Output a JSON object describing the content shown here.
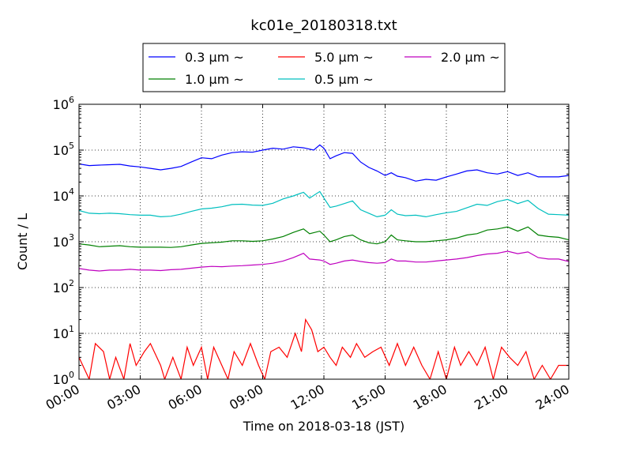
{
  "chart_data": {
    "type": "line",
    "title": "kc01e_20180318.txt",
    "xlabel": "Time on 2018-03-18 (JST)",
    "ylabel": "Count / L",
    "y_scale": "log",
    "xlim": [
      0,
      24
    ],
    "ylim": [
      1,
      1000000
    ],
    "grid": true,
    "legend_placement": "top-center",
    "x_tick_labels": [
      "00:00",
      "03:00",
      "06:00",
      "09:00",
      "12:00",
      "15:00",
      "18:00",
      "21:00",
      "24:00"
    ],
    "y_tick_labels": [
      {
        "base": "10",
        "exp": "0"
      },
      {
        "base": "10",
        "exp": "1"
      },
      {
        "base": "10",
        "exp": "2"
      },
      {
        "base": "10",
        "exp": "3"
      },
      {
        "base": "10",
        "exp": "4"
      },
      {
        "base": "10",
        "exp": "5"
      },
      {
        "base": "10",
        "exp": "6"
      }
    ],
    "legend_order": [
      0,
      2,
      4,
      1,
      3
    ],
    "series": [
      {
        "name": "0.3 μm ~",
        "color": "#0000ff",
        "points": [
          [
            0,
            50000
          ],
          [
            0.5,
            46000
          ],
          [
            1,
            47000
          ],
          [
            1.5,
            48000
          ],
          [
            2,
            49000
          ],
          [
            2.5,
            45000
          ],
          [
            3,
            43000
          ],
          [
            3.5,
            40000
          ],
          [
            4,
            37000
          ],
          [
            4.5,
            40000
          ],
          [
            5,
            44000
          ],
          [
            5.5,
            55000
          ],
          [
            6,
            68000
          ],
          [
            6.5,
            65000
          ],
          [
            7,
            78000
          ],
          [
            7.5,
            88000
          ],
          [
            8,
            92000
          ],
          [
            8.5,
            90000
          ],
          [
            9,
            100000
          ],
          [
            9.5,
            110000
          ],
          [
            10,
            105000
          ],
          [
            10.5,
            118000
          ],
          [
            11,
            112000
          ],
          [
            11.5,
            100000
          ],
          [
            11.8,
            130000
          ],
          [
            12,
            110000
          ],
          [
            12.3,
            65000
          ],
          [
            12.6,
            75000
          ],
          [
            13,
            88000
          ],
          [
            13.4,
            85000
          ],
          [
            13.8,
            55000
          ],
          [
            14.2,
            42000
          ],
          [
            14.6,
            35000
          ],
          [
            15,
            28000
          ],
          [
            15.3,
            32000
          ],
          [
            15.6,
            27000
          ],
          [
            16,
            25000
          ],
          [
            16.5,
            21000
          ],
          [
            17,
            23000
          ],
          [
            17.5,
            22000
          ],
          [
            18,
            26000
          ],
          [
            18.5,
            30000
          ],
          [
            19,
            35000
          ],
          [
            19.5,
            37000
          ],
          [
            20,
            32000
          ],
          [
            20.5,
            30000
          ],
          [
            21,
            34000
          ],
          [
            21.5,
            28000
          ],
          [
            22,
            32000
          ],
          [
            22.5,
            26000
          ],
          [
            23,
            26000
          ],
          [
            23.5,
            26000
          ],
          [
            24,
            28000
          ]
        ]
      },
      {
        "name": "0.5 μm ~",
        "color": "#00bfbf",
        "points": [
          [
            0,
            4800
          ],
          [
            0.5,
            4200
          ],
          [
            1,
            4100
          ],
          [
            1.5,
            4200
          ],
          [
            2,
            4100
          ],
          [
            2.5,
            3900
          ],
          [
            3,
            3800
          ],
          [
            3.5,
            3800
          ],
          [
            4,
            3500
          ],
          [
            4.5,
            3600
          ],
          [
            5,
            4000
          ],
          [
            5.5,
            4600
          ],
          [
            6,
            5200
          ],
          [
            6.5,
            5400
          ],
          [
            7,
            5800
          ],
          [
            7.5,
            6500
          ],
          [
            8,
            6600
          ],
          [
            8.5,
            6300
          ],
          [
            9,
            6200
          ],
          [
            9.5,
            6900
          ],
          [
            10,
            8600
          ],
          [
            10.5,
            10000
          ],
          [
            11,
            12000
          ],
          [
            11.3,
            9000
          ],
          [
            11.8,
            12500
          ],
          [
            12,
            9000
          ],
          [
            12.3,
            5600
          ],
          [
            12.6,
            6000
          ],
          [
            13,
            6800
          ],
          [
            13.4,
            7800
          ],
          [
            13.8,
            5000
          ],
          [
            14.2,
            4200
          ],
          [
            14.6,
            3500
          ],
          [
            15,
            3800
          ],
          [
            15.3,
            5000
          ],
          [
            15.6,
            4000
          ],
          [
            16,
            3700
          ],
          [
            16.5,
            3800
          ],
          [
            17,
            3500
          ],
          [
            17.5,
            3900
          ],
          [
            18,
            4300
          ],
          [
            18.5,
            4600
          ],
          [
            19,
            5500
          ],
          [
            19.5,
            6600
          ],
          [
            20,
            6200
          ],
          [
            20.5,
            7500
          ],
          [
            21,
            8400
          ],
          [
            21.5,
            6800
          ],
          [
            22,
            8000
          ],
          [
            22.5,
            5300
          ],
          [
            23,
            4000
          ],
          [
            23.5,
            3900
          ],
          [
            24,
            3800
          ]
        ]
      },
      {
        "name": "1.0 μm ~",
        "color": "#008000",
        "points": [
          [
            0,
            900
          ],
          [
            0.5,
            850
          ],
          [
            1,
            780
          ],
          [
            1.5,
            800
          ],
          [
            2,
            820
          ],
          [
            2.5,
            780
          ],
          [
            3,
            760
          ],
          [
            3.5,
            760
          ],
          [
            4,
            760
          ],
          [
            4.5,
            750
          ],
          [
            5,
            780
          ],
          [
            5.5,
            850
          ],
          [
            6,
            920
          ],
          [
            6.5,
            950
          ],
          [
            7,
            980
          ],
          [
            7.5,
            1050
          ],
          [
            8,
            1050
          ],
          [
            8.5,
            1020
          ],
          [
            9,
            1050
          ],
          [
            9.5,
            1150
          ],
          [
            10,
            1300
          ],
          [
            10.5,
            1600
          ],
          [
            11,
            1900
          ],
          [
            11.3,
            1500
          ],
          [
            11.8,
            1700
          ],
          [
            12,
            1400
          ],
          [
            12.3,
            1000
          ],
          [
            12.6,
            1100
          ],
          [
            13,
            1300
          ],
          [
            13.4,
            1400
          ],
          [
            13.8,
            1100
          ],
          [
            14.2,
            950
          ],
          [
            14.6,
            900
          ],
          [
            15,
            1000
          ],
          [
            15.3,
            1400
          ],
          [
            15.6,
            1100
          ],
          [
            16,
            1050
          ],
          [
            16.5,
            1000
          ],
          [
            17,
            1000
          ],
          [
            17.5,
            1050
          ],
          [
            18,
            1100
          ],
          [
            18.5,
            1200
          ],
          [
            19,
            1400
          ],
          [
            19.5,
            1500
          ],
          [
            20,
            1800
          ],
          [
            20.5,
            1900
          ],
          [
            21,
            2100
          ],
          [
            21.5,
            1700
          ],
          [
            22,
            2100
          ],
          [
            22.5,
            1400
          ],
          [
            23,
            1300
          ],
          [
            23.5,
            1250
          ],
          [
            24,
            1100
          ]
        ]
      },
      {
        "name": "2.0 μm ~",
        "color": "#bf00bf",
        "points": [
          [
            0,
            260
          ],
          [
            0.5,
            240
          ],
          [
            1,
            230
          ],
          [
            1.5,
            240
          ],
          [
            2,
            240
          ],
          [
            2.5,
            250
          ],
          [
            3,
            240
          ],
          [
            3.5,
            240
          ],
          [
            4,
            235
          ],
          [
            4.5,
            245
          ],
          [
            5,
            250
          ],
          [
            5.5,
            265
          ],
          [
            6,
            280
          ],
          [
            6.5,
            290
          ],
          [
            7,
            285
          ],
          [
            7.5,
            295
          ],
          [
            8,
            300
          ],
          [
            8.5,
            310
          ],
          [
            9,
            320
          ],
          [
            9.5,
            340
          ],
          [
            10,
            380
          ],
          [
            10.5,
            450
          ],
          [
            11,
            560
          ],
          [
            11.3,
            420
          ],
          [
            11.8,
            400
          ],
          [
            12,
            380
          ],
          [
            12.3,
            320
          ],
          [
            12.6,
            340
          ],
          [
            13,
            380
          ],
          [
            13.4,
            400
          ],
          [
            13.8,
            370
          ],
          [
            14.2,
            350
          ],
          [
            14.6,
            340
          ],
          [
            15,
            350
          ],
          [
            15.3,
            420
          ],
          [
            15.6,
            380
          ],
          [
            16,
            380
          ],
          [
            16.5,
            360
          ],
          [
            17,
            360
          ],
          [
            17.5,
            380
          ],
          [
            18,
            400
          ],
          [
            18.5,
            420
          ],
          [
            19,
            450
          ],
          [
            19.5,
            500
          ],
          [
            20,
            540
          ],
          [
            20.5,
            560
          ],
          [
            21,
            620
          ],
          [
            21.5,
            550
          ],
          [
            22,
            600
          ],
          [
            22.5,
            450
          ],
          [
            23,
            420
          ],
          [
            23.5,
            420
          ],
          [
            24,
            370
          ]
        ]
      },
      {
        "name": "5.0 μm ~",
        "color": "#ff0000",
        "points": [
          [
            0,
            3
          ],
          [
            0.5,
            1
          ],
          [
            0.8,
            6
          ],
          [
            1.2,
            4
          ],
          [
            1.5,
            1
          ],
          [
            1.8,
            3
          ],
          [
            2.2,
            1
          ],
          [
            2.5,
            6
          ],
          [
            2.8,
            2
          ],
          [
            3.2,
            4
          ],
          [
            3.5,
            6
          ],
          [
            4,
            2
          ],
          [
            4.2,
            1
          ],
          [
            4.6,
            3
          ],
          [
            5,
            1
          ],
          [
            5.3,
            5
          ],
          [
            5.6,
            2
          ],
          [
            6,
            5
          ],
          [
            6.3,
            1
          ],
          [
            6.6,
            5
          ],
          [
            7,
            2
          ],
          [
            7.3,
            1
          ],
          [
            7.6,
            4
          ],
          [
            8,
            2
          ],
          [
            8.4,
            6
          ],
          [
            8.8,
            2
          ],
          [
            9.1,
            1
          ],
          [
            9.4,
            4
          ],
          [
            9.8,
            5
          ],
          [
            10.2,
            3
          ],
          [
            10.6,
            10
          ],
          [
            10.9,
            4
          ],
          [
            11.1,
            20
          ],
          [
            11.4,
            12
          ],
          [
            11.7,
            4
          ],
          [
            12,
            5
          ],
          [
            12.3,
            3
          ],
          [
            12.6,
            2
          ],
          [
            12.9,
            5
          ],
          [
            13.3,
            3
          ],
          [
            13.6,
            6
          ],
          [
            14,
            3
          ],
          [
            14.4,
            4
          ],
          [
            14.8,
            5
          ],
          [
            15.2,
            2
          ],
          [
            15.6,
            6
          ],
          [
            16,
            2
          ],
          [
            16.4,
            5
          ],
          [
            16.8,
            2
          ],
          [
            17.2,
            1
          ],
          [
            17.6,
            4
          ],
          [
            18,
            1
          ],
          [
            18.4,
            5
          ],
          [
            18.7,
            2
          ],
          [
            19.1,
            4
          ],
          [
            19.5,
            2
          ],
          [
            19.9,
            5
          ],
          [
            20.3,
            1
          ],
          [
            20.7,
            5
          ],
          [
            21.1,
            3
          ],
          [
            21.5,
            2
          ],
          [
            21.9,
            4
          ],
          [
            22.3,
            1
          ],
          [
            22.7,
            2
          ],
          [
            23.1,
            1
          ],
          [
            23.5,
            2
          ],
          [
            24,
            2
          ]
        ]
      }
    ]
  }
}
